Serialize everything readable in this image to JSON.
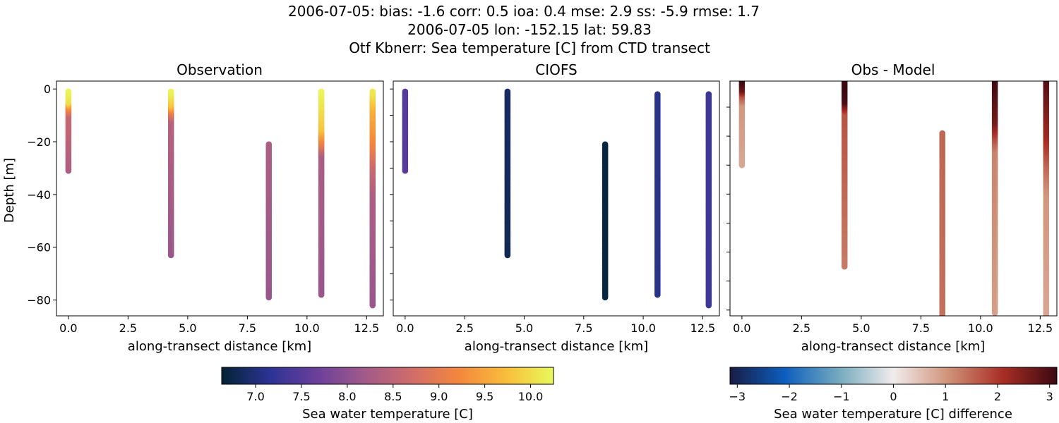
{
  "title_lines": [
    "2006-07-05: bias: -1.6  corr: 0.5  ioa: 0.4  mse: 2.9  ss: -5.9  rmse: 1.7",
    "2006-07-05 lon: -152.15 lat: 59.83",
    "Otf Kbnerr: Sea temperature [C] from CTD transect"
  ],
  "chart_data": [
    {
      "type": "scatter",
      "title": "Observation",
      "xlabel": "along-transect distance [km]",
      "ylabel": "Depth [m]",
      "xlim": [
        -0.5,
        13.2
      ],
      "ylim": [
        -86,
        3
      ],
      "xticks": [
        "0.0",
        "2.5",
        "5.0",
        "7.5",
        "10.0",
        "12.5"
      ],
      "yticks": [
        "0",
        "−20",
        "−40",
        "−60",
        "−80"
      ],
      "colormap": "thermal",
      "clim": [
        6.63,
        10.25
      ],
      "stations": [
        {
          "x": 0.0,
          "profile": [
            [
              -1,
              10.2
            ],
            [
              -5,
              10.0
            ],
            [
              -7,
              9.3
            ],
            [
              -10,
              8.6
            ],
            [
              -31,
              8.3
            ]
          ]
        },
        {
          "x": 4.3,
          "profile": [
            [
              -1,
              10.2
            ],
            [
              -6,
              9.8
            ],
            [
              -9,
              9.0
            ],
            [
              -12,
              8.4
            ],
            [
              -63,
              8.1
            ]
          ]
        },
        {
          "x": 8.4,
          "profile": [
            [
              -21,
              8.3
            ],
            [
              -79,
              8.1
            ]
          ]
        },
        {
          "x": 10.6,
          "profile": [
            [
              -1,
              10.2
            ],
            [
              -15,
              9.8
            ],
            [
              -21,
              9.0
            ],
            [
              -25,
              8.3
            ],
            [
              -78,
              8.1
            ]
          ]
        },
        {
          "x": 12.75,
          "profile": [
            [
              -1,
              10.1
            ],
            [
              -8,
              9.6
            ],
            [
              -20,
              9.2
            ],
            [
              -30,
              8.6
            ],
            [
              -40,
              8.3
            ],
            [
              -82,
              8.1
            ]
          ]
        }
      ]
    },
    {
      "type": "scatter",
      "title": "CIOFS",
      "xlabel": "along-transect distance [km]",
      "xlim": [
        -0.5,
        13.2
      ],
      "ylim": [
        -86,
        3
      ],
      "xticks": [
        "0.0",
        "2.5",
        "5.0",
        "7.5",
        "10.0",
        "12.5"
      ],
      "colormap": "thermal",
      "clim": [
        6.63,
        10.25
      ],
      "stations": [
        {
          "x": 0.0,
          "profile": [
            [
              -1,
              7.5
            ],
            [
              -31,
              7.5
            ]
          ]
        },
        {
          "x": 4.3,
          "profile": [
            [
              -1,
              6.9
            ],
            [
              -63,
              6.8
            ]
          ]
        },
        {
          "x": 8.4,
          "profile": [
            [
              -21,
              6.7
            ],
            [
              -79,
              6.7
            ]
          ]
        },
        {
          "x": 10.6,
          "profile": [
            [
              -2,
              7.1
            ],
            [
              -78,
              7.1
            ]
          ]
        },
        {
          "x": 12.75,
          "profile": [
            [
              -2,
              7.3
            ],
            [
              -82,
              7.3
            ]
          ]
        }
      ]
    },
    {
      "type": "scatter",
      "title": "Obs - Model",
      "xlabel": "along-transect distance [km]",
      "xlim": [
        -0.5,
        13.2
      ],
      "ylim": [
        -82,
        -1
      ],
      "xticks": [
        "0.0",
        "2.5",
        "5.0",
        "7.5",
        "10.0",
        "12.5"
      ],
      "colormap": "balance",
      "clim": [
        -3.14,
        3.14
      ],
      "stations": [
        {
          "x": 0.0,
          "profile": [
            [
              -1,
              3.1
            ],
            [
              -4,
              2.7
            ],
            [
              -6,
              1.7
            ],
            [
              -9,
              1.0
            ],
            [
              -30,
              0.8
            ]
          ]
        },
        {
          "x": 4.3,
          "profile": [
            [
              -1,
              3.2
            ],
            [
              -8,
              3.0
            ],
            [
              -12,
              1.7
            ],
            [
              -65,
              1.3
            ]
          ]
        },
        {
          "x": 8.4,
          "profile": [
            [
              -19,
              1.5
            ],
            [
              -83,
              1.4
            ]
          ]
        },
        {
          "x": 10.6,
          "profile": [
            [
              -1,
              3.1
            ],
            [
              -15,
              2.6
            ],
            [
              -21,
              1.7
            ],
            [
              -25,
              1.2
            ],
            [
              -81,
              0.9
            ]
          ]
        },
        {
          "x": 12.75,
          "profile": [
            [
              -1,
              2.9
            ],
            [
              -20,
              2.2
            ],
            [
              -30,
              1.5
            ],
            [
              -40,
              1.0
            ],
            [
              -87,
              0.8
            ]
          ]
        }
      ]
    }
  ],
  "colorbars": [
    {
      "label": "Sea water temperature [C]",
      "colormap": "thermal",
      "range": [
        6.63,
        10.25
      ],
      "ticks": [
        "7.0",
        "7.5",
        "8.0",
        "8.5",
        "9.0",
        "9.5",
        "10.0"
      ]
    },
    {
      "label": "Sea water temperature [C] difference",
      "colormap": "balance",
      "range": [
        -3.14,
        3.14
      ],
      "ticks": [
        "−3",
        "−2",
        "−1",
        "0",
        "1",
        "2",
        "3"
      ]
    }
  ],
  "colormaps": {
    "thermal": [
      "#042333",
      "#2b3394",
      "#6b3f9b",
      "#a05a8a",
      "#d06c6a",
      "#f3873e",
      "#f9bd3b",
      "#e8fa5b"
    ],
    "balance": [
      "#181c43",
      "#0c5ebe",
      "#75aabe",
      "#f1ecec",
      "#d0937a",
      "#a92e25",
      "#3c0912"
    ]
  }
}
